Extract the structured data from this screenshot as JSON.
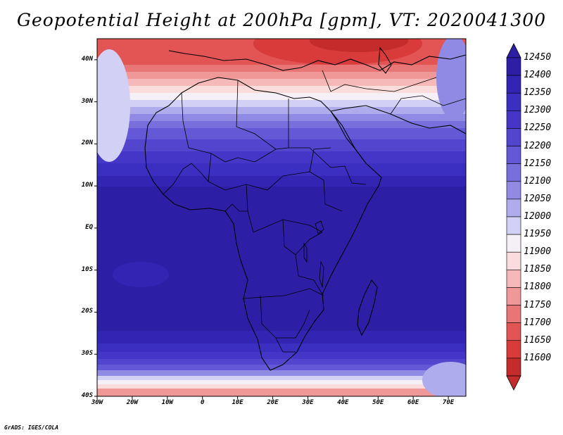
{
  "title": "Geopotential Height at 200hPa [gpm], VT: 2020041300",
  "credit": "GrADS: IGES/COLA",
  "map": {
    "lat_range": [
      -40,
      45
    ],
    "lon_range": [
      -30,
      75
    ],
    "lat_ticks": [
      "40N",
      "30N",
      "20N",
      "10N",
      "EQ",
      "10S",
      "20S",
      "30S",
      "40S"
    ],
    "lon_ticks": [
      "30W",
      "20W",
      "10W",
      "0",
      "10E",
      "20E",
      "30E",
      "40E",
      "50E",
      "60E",
      "70E"
    ]
  },
  "colorbar": {
    "labels": [
      "12450",
      "12400",
      "12350",
      "12300",
      "12250",
      "12200",
      "12150",
      "12100",
      "12050",
      "12000",
      "11950",
      "11900",
      "11850",
      "11800",
      "11750",
      "11700",
      "11650",
      "11600"
    ],
    "colors": [
      "#2c1fa6",
      "#3225b4",
      "#3a2fc0",
      "#4437c8",
      "#5246cf",
      "#6358d6",
      "#7770dc",
      "#8f8ae3",
      "#aeacec",
      "#d2d1f5",
      "#f4f0f6",
      "#fbdcdc",
      "#f6b9b9",
      "#f09898",
      "#e97676",
      "#e35454",
      "#d93b3b",
      "#c42b2b"
    ]
  }
}
